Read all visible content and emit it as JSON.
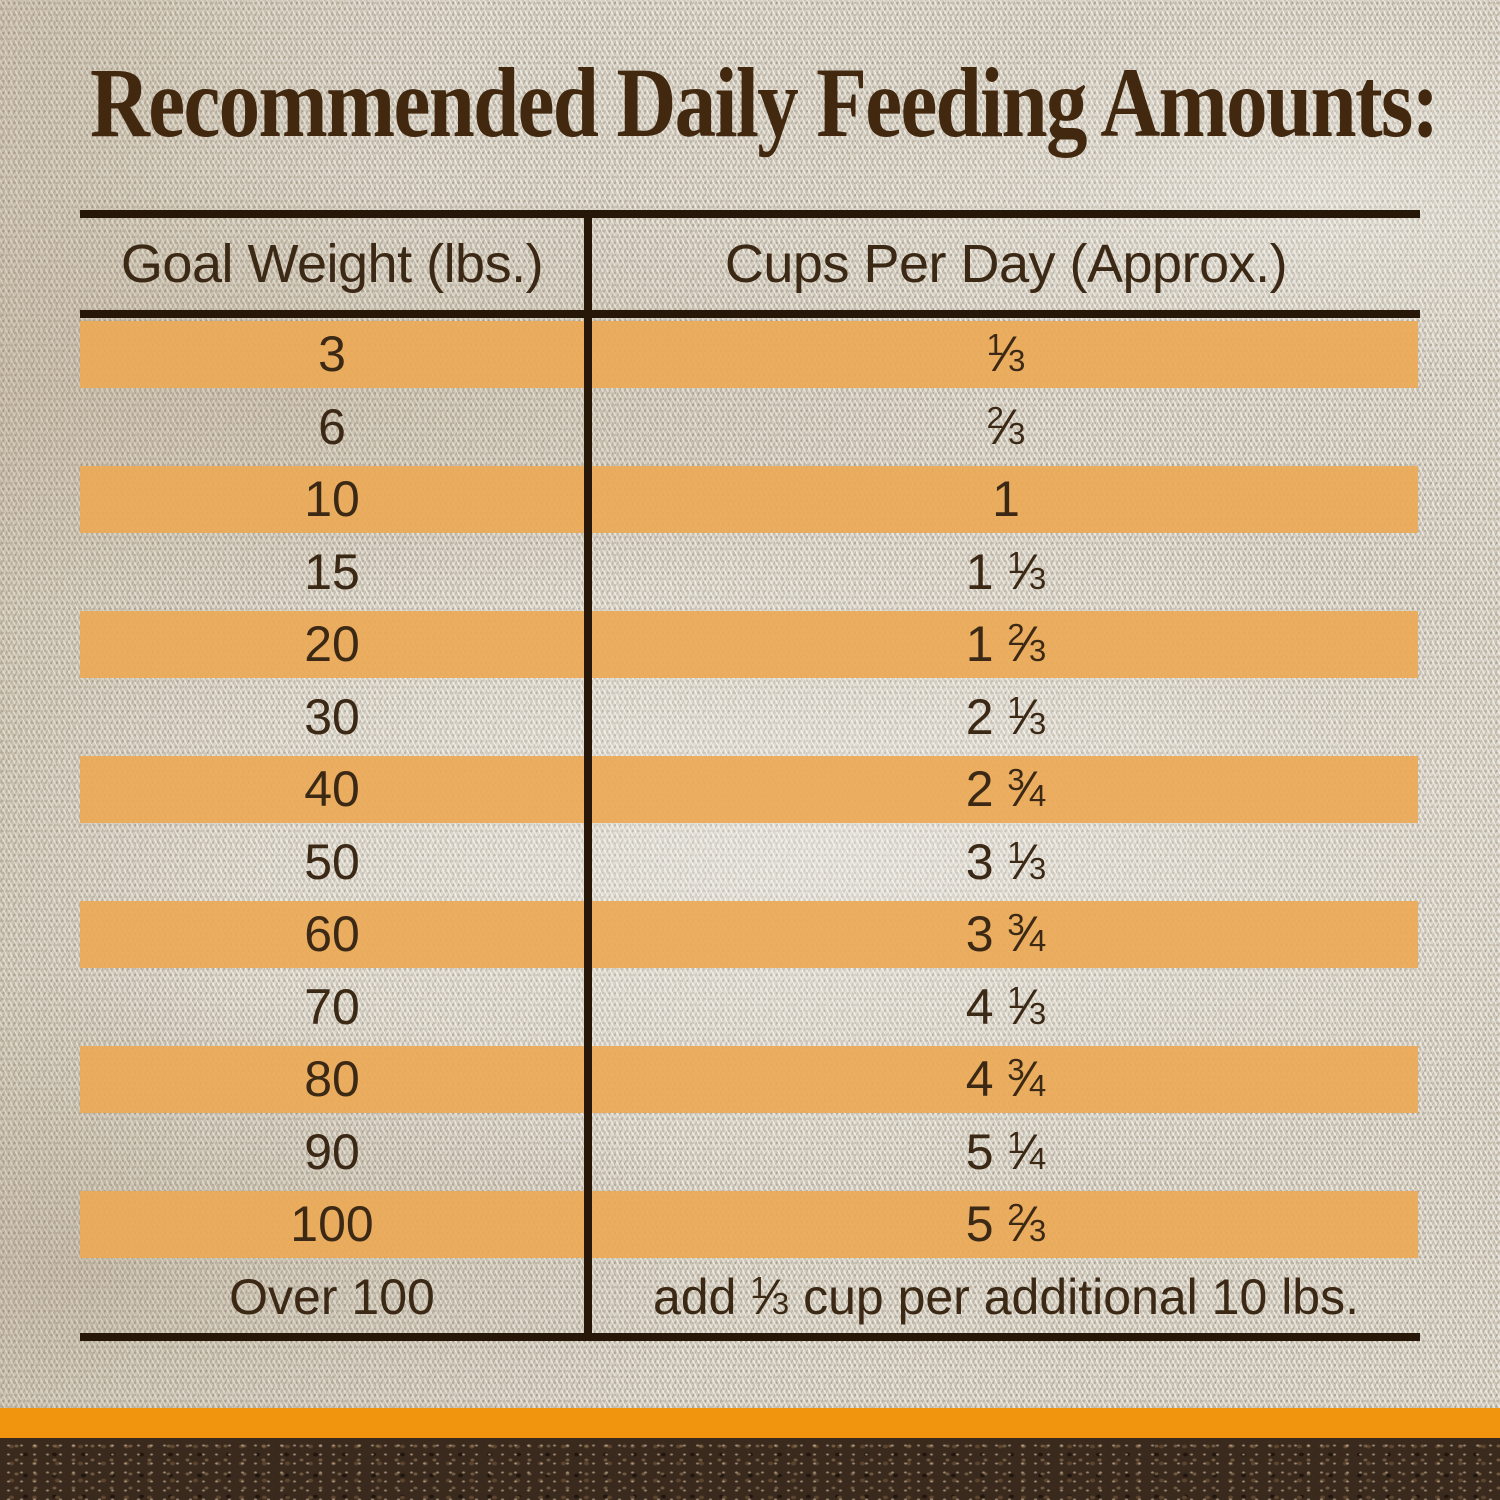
{
  "page": {
    "title": "Recommended Daily Feeding Amounts:"
  },
  "table": {
    "columns": [
      {
        "label": "Goal Weight (lbs.)"
      },
      {
        "label": "Cups Per Day (Approx.)"
      }
    ],
    "rows": [
      {
        "weight": "3",
        "cups": [
          {
            "f": [
              "1",
              "3"
            ]
          }
        ]
      },
      {
        "weight": "6",
        "cups": [
          {
            "f": [
              "2",
              "3"
            ]
          }
        ]
      },
      {
        "weight": "10",
        "cups": [
          {
            "t": "1"
          }
        ]
      },
      {
        "weight": "15",
        "cups": [
          {
            "t": "1 "
          },
          {
            "f": [
              "1",
              "3"
            ]
          }
        ]
      },
      {
        "weight": "20",
        "cups": [
          {
            "t": "1 "
          },
          {
            "f": [
              "2",
              "3"
            ]
          }
        ]
      },
      {
        "weight": "30",
        "cups": [
          {
            "t": "2 "
          },
          {
            "f": [
              "1",
              "3"
            ]
          }
        ]
      },
      {
        "weight": "40",
        "cups": [
          {
            "t": "2 "
          },
          {
            "f": [
              "3",
              "4"
            ]
          }
        ]
      },
      {
        "weight": "50",
        "cups": [
          {
            "t": "3 "
          },
          {
            "f": [
              "1",
              "3"
            ]
          }
        ]
      },
      {
        "weight": "60",
        "cups": [
          {
            "t": "3 "
          },
          {
            "f": [
              "3",
              "4"
            ]
          }
        ]
      },
      {
        "weight": "70",
        "cups": [
          {
            "t": "4 "
          },
          {
            "f": [
              "1",
              "3"
            ]
          }
        ]
      },
      {
        "weight": "80",
        "cups": [
          {
            "t": "4 "
          },
          {
            "f": [
              "3",
              "4"
            ]
          }
        ]
      },
      {
        "weight": "90",
        "cups": [
          {
            "t": "5 "
          },
          {
            "f": [
              "1",
              "4"
            ]
          }
        ]
      },
      {
        "weight": "100",
        "cups": [
          {
            "t": "5 "
          },
          {
            "f": [
              "2",
              "3"
            ]
          }
        ]
      },
      {
        "weight": "Over 100",
        "cups": [
          {
            "t": "add "
          },
          {
            "f": [
              "1",
              "3"
            ]
          },
          {
            "t": " cup per additional 10 lbs."
          }
        ]
      }
    ]
  },
  "chart_data": {
    "type": "table",
    "title": "Recommended Daily Feeding Amounts:",
    "columns": [
      "Goal Weight (lbs.)",
      "Cups Per Day (Approx.)"
    ],
    "rows": [
      [
        "3",
        "⅓"
      ],
      [
        "6",
        "⅔"
      ],
      [
        "10",
        "1"
      ],
      [
        "15",
        "1 ⅓"
      ],
      [
        "20",
        "1 ⅔"
      ],
      [
        "30",
        "2 ⅓"
      ],
      [
        "40",
        "2 ¾"
      ],
      [
        "50",
        "3 ⅓"
      ],
      [
        "60",
        "3 ¾"
      ],
      [
        "70",
        "4 ⅓"
      ],
      [
        "80",
        "4 ¾"
      ],
      [
        "90",
        "5 ¼"
      ],
      [
        "100",
        "5 ⅔"
      ],
      [
        "Over 100",
        "add ⅓ cup per additional 10 lbs."
      ]
    ],
    "layout_hints": {
      "striped_rows": "alternating starting with first data row",
      "header_rules": true
    }
  },
  "colors": {
    "ink": "#3C2915",
    "title_ink": "#42280F",
    "rule": "#261709",
    "stripe": "rgba(235,169,86,0.92)",
    "accent_band": "#F2950E",
    "fabric_base": "#D9D3C6",
    "soil_base": "#3A2A1E"
  }
}
